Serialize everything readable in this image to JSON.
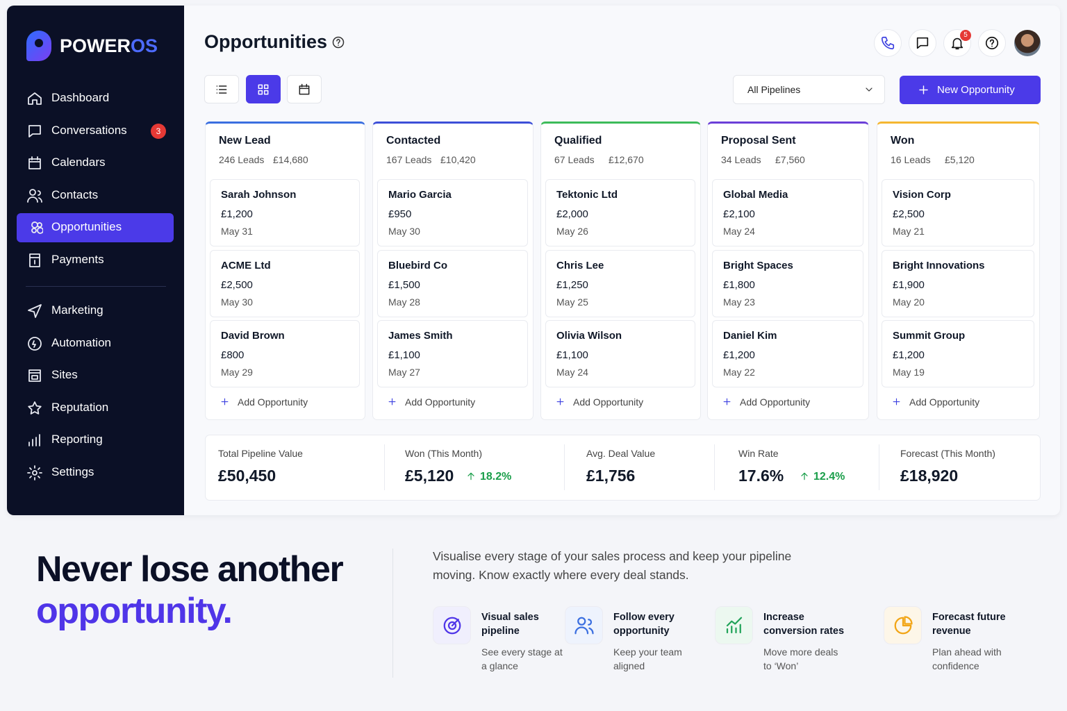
{
  "brand": {
    "name": "POWER",
    "suffix": "OS"
  },
  "sidebar": {
    "primary": [
      {
        "label": "Dashboard",
        "icon": "home"
      },
      {
        "label": "Conversations",
        "icon": "chat",
        "badge": "3"
      },
      {
        "label": "Calendars",
        "icon": "cal"
      },
      {
        "label": "Contacts",
        "icon": "users"
      },
      {
        "label": "Opportunities",
        "icon": "opp",
        "active": true
      },
      {
        "label": "Payments",
        "icon": "pay"
      }
    ],
    "secondary": [
      {
        "label": "Marketing",
        "icon": "send"
      },
      {
        "label": "Automation",
        "icon": "auto"
      },
      {
        "label": "Sites",
        "icon": "site"
      },
      {
        "label": "Reputation",
        "icon": "star"
      },
      {
        "label": "Reporting",
        "icon": "bars"
      },
      {
        "label": "Settings",
        "icon": "gear"
      }
    ]
  },
  "header": {
    "title": "Opportunities",
    "notifications": "5"
  },
  "toolbar": {
    "pipeline": "All Pipelines",
    "new_button": "New Opportunity"
  },
  "board": {
    "add_label": "Add Opportunity",
    "columns": [
      {
        "name": "New Lead",
        "leads": "246 Leads",
        "value": "£14,680",
        "color": "#3b6fe0",
        "cards": [
          {
            "name": "Sarah Johnson",
            "amount": "£1,200",
            "date": "May 31"
          },
          {
            "name": "ACME Ltd",
            "amount": "£2,500",
            "date": "May 30"
          },
          {
            "name": "David Brown",
            "amount": "£800",
            "date": "May 29"
          }
        ]
      },
      {
        "name": "Contacted",
        "leads": "167 Leads",
        "value": "£10,420",
        "color": "#3d4fd8",
        "cards": [
          {
            "name": "Mario Garcia",
            "amount": "£950",
            "date": "May 30"
          },
          {
            "name": "Bluebird Co",
            "amount": "£1,500",
            "date": "May 28"
          },
          {
            "name": "James Smith",
            "amount": "£1,100",
            "date": "May 27"
          }
        ]
      },
      {
        "name": "Qualified",
        "leads": "67 Leads",
        "value": "£12,670",
        "color": "#3dbb5a",
        "cards": [
          {
            "name": "Tektonic Ltd",
            "amount": "£2,000",
            "date": "May 26"
          },
          {
            "name": "Chris Lee",
            "amount": "£1,250",
            "date": "May 25"
          },
          {
            "name": "Olivia Wilson",
            "amount": "£1,100",
            "date": "May 24"
          }
        ]
      },
      {
        "name": "Proposal Sent",
        "leads": "34 Leads",
        "value": "£7,560",
        "color": "#6b3fd8",
        "cards": [
          {
            "name": "Global Media",
            "amount": "£2,100",
            "date": "May 24"
          },
          {
            "name": "Bright Spaces",
            "amount": "£1,800",
            "date": "May 23"
          },
          {
            "name": "Daniel Kim",
            "amount": "£1,200",
            "date": "May 22"
          }
        ]
      },
      {
        "name": "Won",
        "leads": "16 Leads",
        "value": "£5,120",
        "color": "#f5b731",
        "cards": [
          {
            "name": "Vision Corp",
            "amount": "£2,500",
            "date": "May 21"
          },
          {
            "name": "Bright Innovations",
            "amount": "£1,900",
            "date": "May 20"
          },
          {
            "name": "Summit Group",
            "amount": "£1,200",
            "date": "May 19"
          }
        ]
      }
    ]
  },
  "stats": [
    {
      "label": "Total Pipeline Value",
      "value": "£50,450"
    },
    {
      "label": "Won (This Month)",
      "value": "£5,120",
      "change": "18.2%"
    },
    {
      "label": "Avg. Deal Value",
      "value": "£1,756"
    },
    {
      "label": "Win Rate",
      "value": "17.6%",
      "change": "12.4%"
    },
    {
      "label": "Forecast (This Month)",
      "value": "£18,920"
    }
  ],
  "promo": {
    "headline": "Never lose another",
    "highlight": "opportunity.",
    "description": "Visualise every stage of your sales process and keep your pipeline moving. Know exactly where every deal stands.",
    "features": [
      {
        "title": "Visual sales pipeline",
        "text": "See every stage at a glance",
        "color": "#4f35e8",
        "bg": "#f0effd"
      },
      {
        "title": "Follow every opportunity",
        "text": "Keep your team aligned",
        "color": "#3b6fe0",
        "bg": "#eef3fd"
      },
      {
        "title": "Increase conversion rates",
        "text": "Move more deals to ‘Won’",
        "color": "#22a35a",
        "bg": "#ecf8f0"
      },
      {
        "title": "Forecast future revenue",
        "text": "Plan ahead with confidence",
        "color": "#f2a516",
        "bg": "#fdf6e8"
      }
    ]
  }
}
